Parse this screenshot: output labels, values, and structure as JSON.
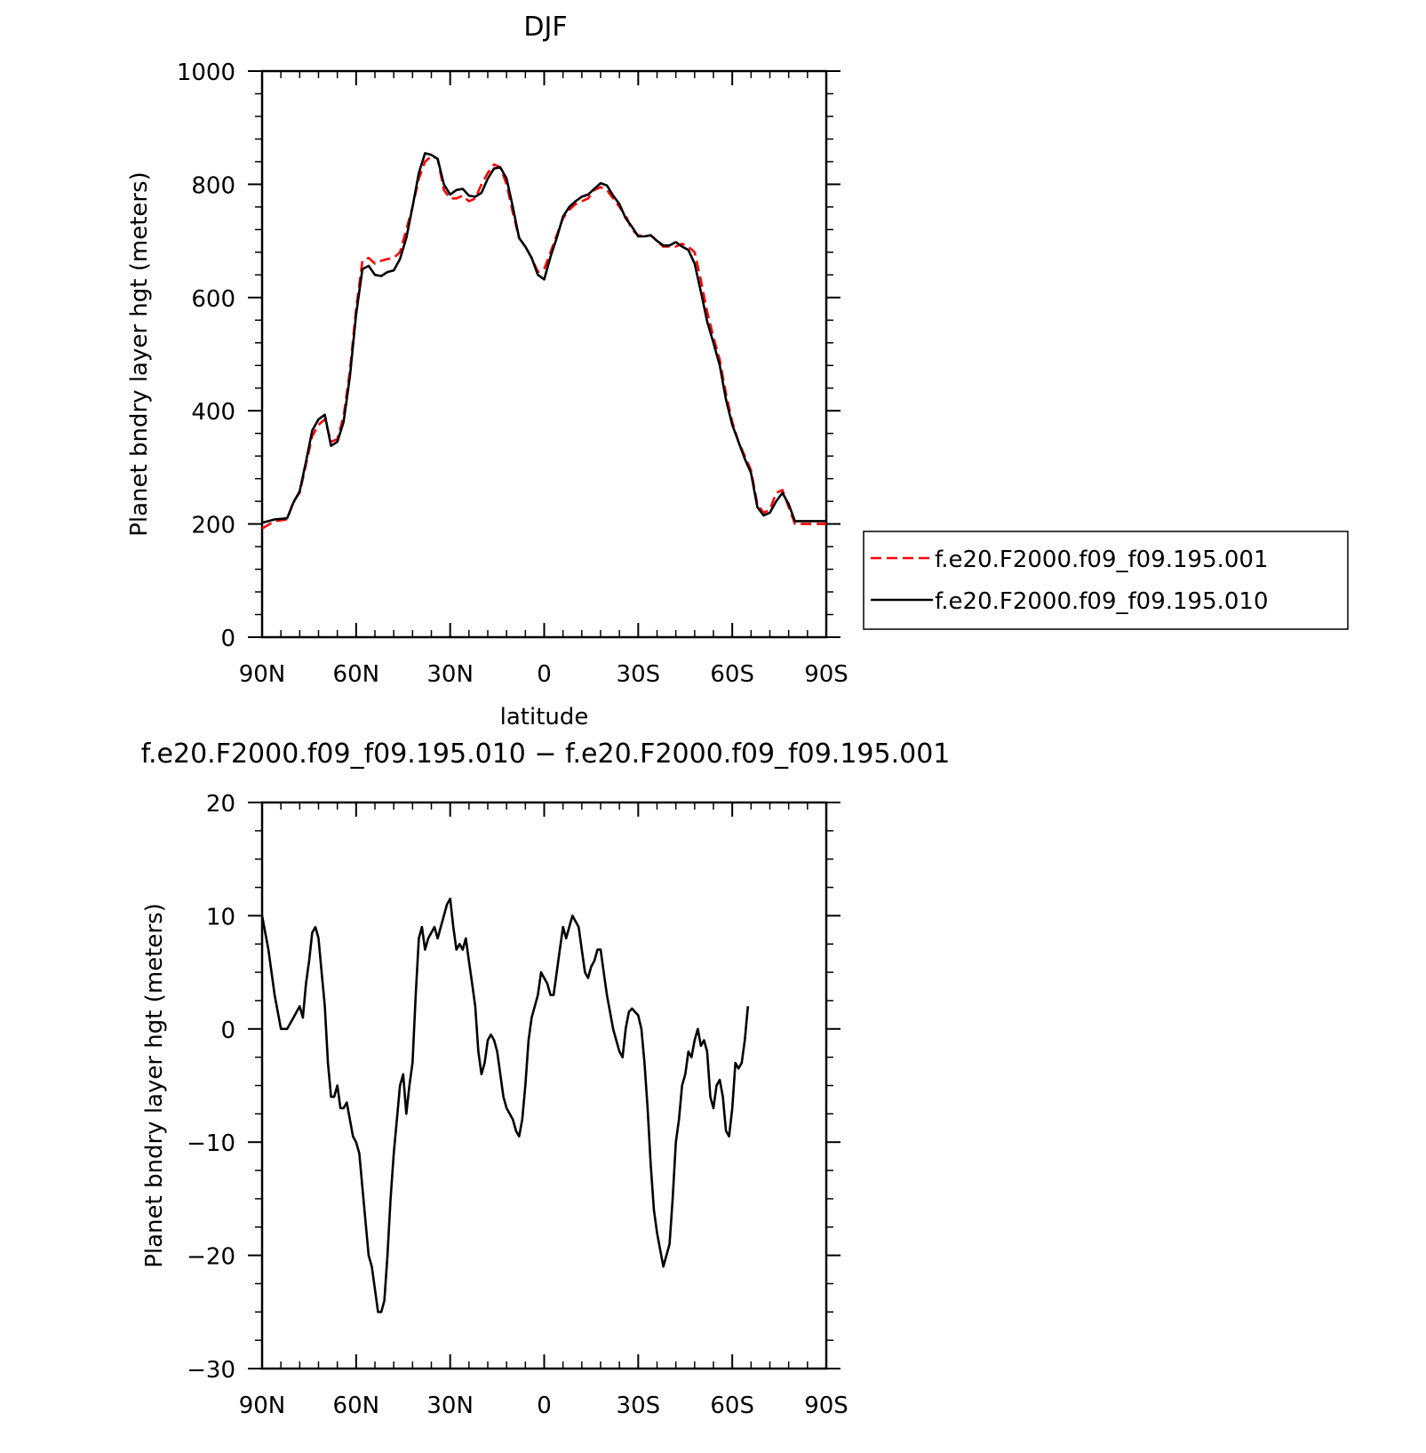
{
  "chart_data": [
    {
      "type": "line",
      "title": "DJF",
      "xlabel": "latitude",
      "ylabel": "Planet bndry layer hgt (meters)",
      "xlim": [
        90,
        -90
      ],
      "ylim": [
        0,
        1000
      ],
      "x_ticks": [
        {
          "value": 90,
          "label": "90N"
        },
        {
          "value": 60,
          "label": "60N"
        },
        {
          "value": 30,
          "label": "30N"
        },
        {
          "value": 0,
          "label": "0"
        },
        {
          "value": -30,
          "label": "30S"
        },
        {
          "value": -60,
          "label": "60S"
        },
        {
          "value": -90,
          "label": "90S"
        }
      ],
      "y_ticks": [
        {
          "value": 0,
          "label": "0"
        },
        {
          "value": 200,
          "label": "200"
        },
        {
          "value": 400,
          "label": "400"
        },
        {
          "value": 600,
          "label": "600"
        },
        {
          "value": 800,
          "label": "800"
        },
        {
          "value": 1000,
          "label": "1000"
        }
      ],
      "grid": false,
      "legend": "right",
      "x": [
        90,
        86,
        82,
        80,
        78,
        76,
        74,
        72,
        70,
        68,
        66,
        64,
        62,
        60,
        58,
        56,
        54,
        52,
        50,
        48,
        46,
        44,
        42,
        40,
        38,
        36,
        34,
        32,
        30,
        28,
        26,
        24,
        22,
        20,
        18,
        16,
        14,
        12,
        10,
        8,
        6,
        4,
        2,
        0,
        -2,
        -4,
        -6,
        -8,
        -10,
        -12,
        -14,
        -16,
        -18,
        -20,
        -22,
        -24,
        -26,
        -28,
        -30,
        -32,
        -34,
        -36,
        -38,
        -40,
        -42,
        -44,
        -46,
        -48,
        -50,
        -52,
        -54,
        -56,
        -58,
        -60,
        -62,
        -64,
        -66,
        -68,
        -70,
        -72,
        -74,
        -76,
        -78,
        -80,
        -82,
        -84,
        -86,
        -88,
        -90
      ],
      "series": [
        {
          "name": "f.e20.F2000.f09_f09.195.001",
          "color": "#ff0000",
          "dash": "dashed",
          "values": [
            192,
            205,
            208,
            240,
            255,
            305,
            355,
            375,
            385,
            345,
            350,
            390,
            470,
            580,
            665,
            670,
            660,
            665,
            668,
            670,
            680,
            720,
            760,
            810,
            840,
            850,
            845,
            790,
            775,
            775,
            780,
            770,
            775,
            800,
            820,
            835,
            830,
            800,
            750,
            705,
            690,
            670,
            645,
            650,
            680,
            710,
            740,
            755,
            765,
            770,
            775,
            790,
            795,
            790,
            775,
            760,
            745,
            720,
            710,
            708,
            710,
            700,
            690,
            690,
            690,
            695,
            690,
            680,
            630,
            575,
            530,
            490,
            430,
            380,
            345,
            320,
            295,
            235,
            220,
            225,
            255,
            260,
            230,
            200,
            200,
            200,
            200,
            200,
            200
          ]
        },
        {
          "name": "f.e20.F2000.f09_f09.195.010",
          "color": "#000000",
          "dash": "solid",
          "values": [
            202,
            208,
            210,
            238,
            258,
            310,
            365,
            385,
            393,
            338,
            345,
            380,
            460,
            570,
            650,
            656,
            640,
            638,
            645,
            648,
            668,
            705,
            760,
            820,
            855,
            852,
            845,
            800,
            782,
            790,
            792,
            780,
            778,
            785,
            810,
            828,
            830,
            810,
            760,
            705,
            690,
            670,
            640,
            632,
            672,
            705,
            743,
            760,
            770,
            778,
            782,
            792,
            802,
            798,
            780,
            765,
            740,
            725,
            708,
            708,
            710,
            700,
            692,
            692,
            698,
            690,
            684,
            660,
            610,
            558,
            520,
            480,
            420,
            375,
            345,
            315,
            290,
            230,
            215,
            220,
            240,
            255,
            235,
            205,
            205,
            205,
            205,
            205,
            205
          ]
        }
      ]
    },
    {
      "type": "line",
      "title": "f.e20.F2000.f09_f09.195.010 − f.e20.F2000.f09_f09.195.001",
      "xlabel": "latitude",
      "ylabel": "Planet bndry layer hgt (meters)",
      "xlim": [
        90,
        -90
      ],
      "ylim": [
        -30,
        20
      ],
      "x_ticks": [
        {
          "value": 90,
          "label": "90N"
        },
        {
          "value": 60,
          "label": "60N"
        },
        {
          "value": 30,
          "label": "30N"
        },
        {
          "value": 0,
          "label": "0"
        },
        {
          "value": -30,
          "label": "30S"
        },
        {
          "value": -60,
          "label": "60S"
        },
        {
          "value": -90,
          "label": "90S"
        }
      ],
      "y_ticks": [
        {
          "value": -30,
          "label": "−30"
        },
        {
          "value": -20,
          "label": "−20"
        },
        {
          "value": -10,
          "label": "−10"
        },
        {
          "value": 0,
          "label": "0"
        },
        {
          "value": 10,
          "label": "10"
        },
        {
          "value": 20,
          "label": "20"
        }
      ],
      "grid": false,
      "series": [
        {
          "color": "#000000",
          "values": [
            [
              90,
              10
            ],
            [
              88,
              7
            ],
            [
              86,
              3
            ],
            [
              84,
              0
            ],
            [
              82,
              0
            ],
            [
              80,
              1
            ],
            [
              78,
              2
            ],
            [
              77,
              1
            ],
            [
              76,
              4
            ],
            [
              75,
              6
            ],
            [
              74,
              8.5
            ],
            [
              73,
              9
            ],
            [
              72,
              8
            ],
            [
              71,
              5
            ],
            [
              70,
              2
            ],
            [
              69,
              -3
            ],
            [
              68,
              -6
            ],
            [
              67,
              -6
            ],
            [
              66,
              -5
            ],
            [
              65,
              -7
            ],
            [
              64,
              -7
            ],
            [
              63,
              -6.5
            ],
            [
              62,
              -8
            ],
            [
              61,
              -9.5
            ],
            [
              60,
              -10
            ],
            [
              59,
              -11
            ],
            [
              58,
              -14
            ],
            [
              57,
              -17
            ],
            [
              56,
              -20
            ],
            [
              55,
              -21
            ],
            [
              54,
              -23
            ],
            [
              53,
              -25
            ],
            [
              52,
              -25
            ],
            [
              51,
              -24
            ],
            [
              50,
              -20
            ],
            [
              49,
              -15
            ],
            [
              48,
              -11
            ],
            [
              47,
              -8
            ],
            [
              46,
              -5
            ],
            [
              45,
              -4
            ],
            [
              44,
              -7.5
            ],
            [
              43,
              -5
            ],
            [
              42,
              -3
            ],
            [
              41,
              3
            ],
            [
              40,
              8
            ],
            [
              39,
              9
            ],
            [
              38,
              7
            ],
            [
              37,
              8
            ],
            [
              36,
              8.5
            ],
            [
              35,
              9
            ],
            [
              34,
              8
            ],
            [
              33,
              9
            ],
            [
              32,
              10
            ],
            [
              31,
              11
            ],
            [
              30,
              11.5
            ],
            [
              29,
              9
            ],
            [
              28,
              7
            ],
            [
              27,
              7.5
            ],
            [
              26,
              7
            ],
            [
              25,
              8
            ],
            [
              24,
              6
            ],
            [
              23,
              4
            ],
            [
              22,
              2
            ],
            [
              21,
              -2
            ],
            [
              20,
              -4
            ],
            [
              19,
              -3
            ],
            [
              18,
              -1
            ],
            [
              17,
              -0.5
            ],
            [
              16,
              -1
            ],
            [
              15,
              -2
            ],
            [
              14,
              -4
            ],
            [
              13,
              -6
            ],
            [
              12,
              -7
            ],
            [
              11,
              -7.5
            ],
            [
              10,
              -8
            ],
            [
              9,
              -9
            ],
            [
              8,
              -9.5
            ],
            [
              7,
              -8
            ],
            [
              6,
              -5
            ],
            [
              5,
              -1
            ],
            [
              4,
              1
            ],
            [
              3,
              2
            ],
            [
              2,
              3
            ],
            [
              1,
              5
            ],
            [
              0,
              4.5
            ],
            [
              -1,
              4
            ],
            [
              -2,
              3
            ],
            [
              -3,
              3
            ],
            [
              -4,
              5
            ],
            [
              -5,
              7
            ],
            [
              -6,
              9
            ],
            [
              -7,
              8
            ],
            [
              -8,
              9
            ],
            [
              -9,
              10
            ],
            [
              -10,
              9.5
            ],
            [
              -11,
              9
            ],
            [
              -12,
              7
            ],
            [
              -13,
              5
            ],
            [
              -14,
              4.5
            ],
            [
              -15,
              5.5
            ],
            [
              -16,
              6
            ],
            [
              -17,
              7
            ],
            [
              -18,
              7
            ],
            [
              -19,
              5
            ],
            [
              -20,
              3
            ],
            [
              -21,
              1.5
            ],
            [
              -22,
              0
            ],
            [
              -23,
              -1
            ],
            [
              -24,
              -2
            ],
            [
              -25,
              -2.5
            ],
            [
              -26,
              0
            ],
            [
              -27,
              1.5
            ],
            [
              -28,
              1.8
            ],
            [
              -29,
              1.5
            ],
            [
              -30,
              1.2
            ],
            [
              -31,
              0
            ],
            [
              -32,
              -3
            ],
            [
              -33,
              -7
            ],
            [
              -34,
              -12
            ],
            [
              -35,
              -16
            ],
            [
              -36,
              -18
            ],
            [
              -37,
              -19.5
            ],
            [
              -38,
              -21
            ],
            [
              -39,
              -20
            ],
            [
              -40,
              -19
            ],
            [
              -41,
              -15
            ],
            [
              -42,
              -10
            ],
            [
              -43,
              -8
            ],
            [
              -44,
              -5
            ],
            [
              -45,
              -4
            ],
            [
              -46,
              -2
            ],
            [
              -47,
              -2.5
            ],
            [
              -48,
              -1
            ],
            [
              -49,
              0
            ],
            [
              -50,
              -1.5
            ],
            [
              -51,
              -1
            ],
            [
              -52,
              -2
            ],
            [
              -53,
              -6
            ],
            [
              -54,
              -7
            ],
            [
              -55,
              -5
            ],
            [
              -56,
              -4.5
            ],
            [
              -57,
              -6
            ],
            [
              -58,
              -9
            ],
            [
              -59,
              -9.5
            ],
            [
              -60,
              -7
            ],
            [
              -61,
              -3
            ],
            [
              -62,
              -3.5
            ],
            [
              -63,
              -3
            ],
            [
              -64,
              -1
            ],
            [
              -65,
              2
            ]
          ]
        }
      ]
    }
  ]
}
